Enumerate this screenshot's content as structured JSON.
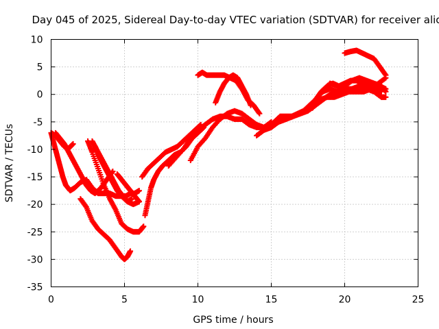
{
  "chart_data": {
    "type": "scatter",
    "title": "Day 045 of 2025, Sidereal Day-to-day VTEC variation (SDTVAR) for receiver alic",
    "xlabel": "GPS time / hours",
    "ylabel": "SDTVAR / TECUs",
    "xlim": [
      0,
      25
    ],
    "ylim": [
      -35,
      10
    ],
    "xticks": [
      "0",
      "5",
      "10",
      "15",
      "20",
      "25"
    ],
    "yticks": [
      "10",
      "5",
      "0",
      "-5",
      "-10",
      "-15",
      "-20",
      "-25",
      "-30",
      "-35"
    ],
    "grid": true,
    "marker": "plus",
    "color": "#ff0000",
    "series": [
      {
        "x": [
          0.0,
          0.3,
          0.6,
          0.9,
          1.2,
          1.5
        ],
        "y": [
          -7.0,
          -7.5,
          -8.5,
          -9.5,
          -9.8,
          -9.0
        ]
      },
      {
        "x": [
          0.0,
          0.2,
          0.4,
          0.6,
          0.8,
          1.0,
          1.3,
          1.6,
          2.0,
          2.4,
          2.8,
          3.2,
          3.6,
          4.0,
          4.4,
          4.8,
          5.2,
          5.6,
          6.0
        ],
        "y": [
          -7.0,
          -9.0,
          -11.0,
          -13.0,
          -15.0,
          -16.5,
          -17.5,
          -17.0,
          -16.0,
          -15.5,
          -17.0,
          -18.0,
          -18.0,
          -18.0,
          -18.5,
          -18.5,
          -19.5,
          -20.0,
          -19.5
        ]
      },
      {
        "x": [
          0.3,
          0.6,
          0.9,
          1.2,
          1.5,
          1.8,
          2.1,
          2.4,
          2.7,
          3.0,
          3.4,
          3.8,
          4.2
        ],
        "y": [
          -7.0,
          -8.0,
          -9.0,
          -10.5,
          -12.0,
          -13.5,
          -15.0,
          -16.5,
          -17.5,
          -18.0,
          -17.0,
          -15.5,
          -14.0
        ]
      },
      {
        "x": [
          2.0,
          2.4,
          2.8,
          3.2,
          3.6,
          4.0,
          4.4,
          4.8,
          5.0,
          5.2,
          5.4
        ],
        "y": [
          -19.0,
          -20.5,
          -23.0,
          -24.5,
          -25.5,
          -26.5,
          -28.0,
          -29.5,
          -30.0,
          -29.5,
          -28.5
        ]
      },
      {
        "x": [
          2.5,
          2.8,
          3.2,
          3.6,
          4.0,
          4.4,
          4.8,
          5.2,
          5.6,
          6.0,
          6.3
        ],
        "y": [
          -8.5,
          -10.5,
          -13.5,
          -16.5,
          -19.0,
          -21.0,
          -23.5,
          -24.5,
          -25.0,
          -25.0,
          -24.0
        ]
      },
      {
        "x": [
          2.8,
          3.1,
          3.4,
          3.7,
          4.0,
          4.3,
          4.6,
          4.9,
          5.2,
          5.5
        ],
        "y": [
          -8.5,
          -10.0,
          -11.5,
          -13.0,
          -14.5,
          -16.0,
          -17.5,
          -18.5,
          -19.5,
          -19.0
        ]
      },
      {
        "x": [
          3.0,
          3.3,
          3.6,
          3.9,
          4.2,
          4.5,
          4.8,
          5.1,
          5.4,
          5.7,
          6.0
        ],
        "y": [
          -9.5,
          -11.5,
          -13.0,
          -14.5,
          -16.0,
          -17.5,
          -18.5,
          -18.5,
          -18.0,
          -18.0,
          -17.5
        ]
      },
      {
        "x": [
          4.5,
          4.8,
          5.1,
          5.4,
          5.7,
          6.0
        ],
        "y": [
          -14.5,
          -15.5,
          -16.5,
          -17.5,
          -18.5,
          -19.5
        ]
      },
      {
        "x": [
          6.4,
          6.6,
          6.8,
          7.0,
          7.3,
          7.6,
          8.0,
          8.4,
          8.8,
          9.2,
          9.6,
          10.0,
          10.4
        ],
        "y": [
          -22.0,
          -19.5,
          -17.0,
          -15.5,
          -14.0,
          -13.0,
          -12.0,
          -11.0,
          -10.5,
          -9.5,
          -8.0,
          -7.0,
          -6.0
        ]
      },
      {
        "x": [
          6.2,
          6.6,
          7.0,
          7.4,
          7.8,
          8.2,
          8.6,
          9.0,
          9.4,
          9.8,
          10.2
        ],
        "y": [
          -15.0,
          -13.5,
          -12.5,
          -11.5,
          -10.5,
          -10.0,
          -9.5,
          -8.5,
          -7.5,
          -6.5,
          -5.5
        ]
      },
      {
        "x": [
          8.0,
          8.5,
          9.0,
          9.5,
          10.0,
          10.5,
          11.0,
          11.5,
          12.0,
          12.5,
          13.0,
          13.5,
          14.0,
          14.5,
          15.0
        ],
        "y": [
          -13.0,
          -11.5,
          -10.0,
          -8.0,
          -6.5,
          -5.5,
          -4.5,
          -4.0,
          -4.0,
          -4.5,
          -4.5,
          -5.5,
          -6.0,
          -6.0,
          -5.0
        ]
      },
      {
        "x": [
          9.5,
          10.0,
          10.5,
          11.0,
          11.5,
          12.0,
          12.5,
          13.0,
          13.5,
          14.0,
          14.5,
          15.0,
          15.5,
          16.0
        ],
        "y": [
          -12.0,
          -9.5,
          -8.0,
          -6.0,
          -4.5,
          -3.5,
          -3.0,
          -3.5,
          -4.5,
          -5.5,
          -6.0,
          -5.5,
          -5.0,
          -4.5
        ]
      },
      {
        "x": [
          10.0,
          10.3,
          10.6,
          11.0,
          11.4,
          11.8,
          12.2,
          12.6,
          13.0,
          13.4,
          13.8,
          14.2
        ],
        "y": [
          3.5,
          4.0,
          3.5,
          3.5,
          3.5,
          3.5,
          3.0,
          2.5,
          1.0,
          -1.0,
          -2.0,
          -3.5
        ]
      },
      {
        "x": [
          11.2,
          11.5,
          11.8,
          12.1,
          12.4,
          12.7,
          13.0,
          13.3,
          13.6
        ],
        "y": [
          -1.5,
          0.5,
          2.0,
          3.0,
          3.5,
          3.0,
          1.5,
          0.0,
          -2.0
        ]
      },
      {
        "x": [
          14.0,
          14.5,
          15.0,
          15.5,
          16.0,
          16.5,
          17.0,
          17.5,
          18.0,
          18.5,
          19.0,
          19.5,
          20.0,
          20.5,
          21.0,
          21.5,
          22.0,
          22.5
        ],
        "y": [
          -7.5,
          -6.5,
          -6.0,
          -5.0,
          -4.5,
          -4.0,
          -3.5,
          -3.0,
          -2.0,
          -1.0,
          0.0,
          0.5,
          0.5,
          1.0,
          1.5,
          1.0,
          1.0,
          0.5
        ]
      },
      {
        "x": [
          14.8,
          15.2,
          15.6,
          16.0,
          16.4,
          16.8,
          17.2,
          17.6,
          18.0,
          18.4,
          18.8,
          19.2,
          19.6,
          20.0,
          20.4,
          20.8,
          21.2,
          21.6,
          22.0,
          22.4,
          22.8
        ],
        "y": [
          -6.0,
          -5.0,
          -4.0,
          -4.0,
          -4.0,
          -3.5,
          -3.0,
          -2.0,
          -1.0,
          0.5,
          1.5,
          2.0,
          1.5,
          2.0,
          2.5,
          2.5,
          2.0,
          1.5,
          1.0,
          1.5,
          1.0
        ]
      },
      {
        "x": [
          17.5,
          18.0,
          18.5,
          19.0,
          19.5,
          20.0,
          20.5,
          21.0,
          21.5,
          22.0,
          22.5,
          22.8
        ],
        "y": [
          -2.5,
          -1.0,
          0.5,
          2.0,
          1.5,
          1.5,
          2.5,
          3.0,
          2.5,
          2.0,
          1.5,
          0.5
        ]
      },
      {
        "x": [
          17.8,
          18.3,
          18.8,
          19.3,
          19.8,
          20.3,
          20.8,
          21.3,
          21.8,
          22.3,
          22.8
        ],
        "y": [
          -2.5,
          -1.0,
          -0.5,
          -0.5,
          0.0,
          0.5,
          0.5,
          0.5,
          1.0,
          2.0,
          3.0
        ]
      },
      {
        "x": [
          18.5,
          19.0,
          19.5,
          20.0,
          20.5,
          21.0,
          21.5,
          22.0,
          22.5,
          22.8
        ],
        "y": [
          0.5,
          1.0,
          0.5,
          1.0,
          1.0,
          1.5,
          1.0,
          0.5,
          -0.5,
          -0.5
        ]
      },
      {
        "x": [
          20.0,
          20.4,
          20.8,
          21.2,
          21.6,
          22.0,
          22.4,
          22.8
        ],
        "y": [
          7.5,
          7.8,
          8.0,
          7.5,
          7.0,
          6.5,
          5.0,
          3.5
        ]
      }
    ]
  }
}
